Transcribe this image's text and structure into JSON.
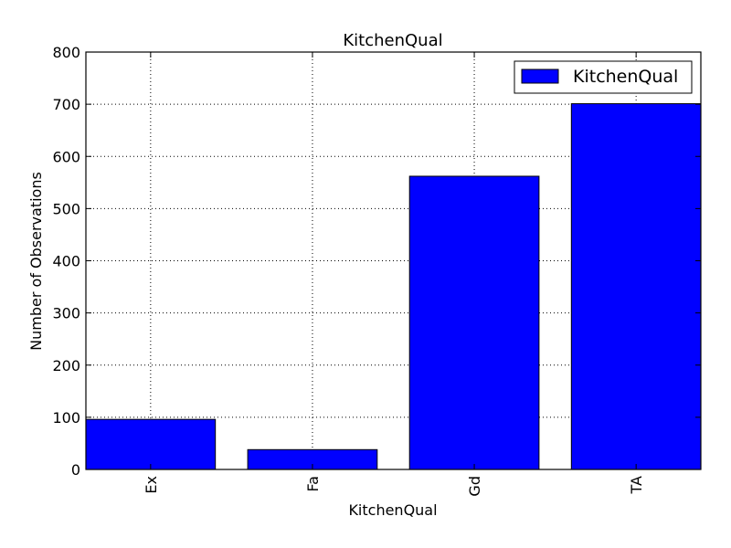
{
  "chart_data": {
    "type": "bar",
    "title": "KitchenQual",
    "xlabel": "KitchenQual",
    "ylabel": "Number of Observations",
    "categories": [
      "Ex",
      "Fa",
      "Gd",
      "TA"
    ],
    "series": [
      {
        "name": "KitchenQual",
        "values": [
          96,
          38,
          562,
          701
        ],
        "color": "#0000ff"
      }
    ],
    "ylim": [
      0,
      800
    ],
    "yticks": [
      0,
      100,
      200,
      300,
      400,
      500,
      600,
      700,
      800
    ],
    "grid": true,
    "legend_position": "top-right"
  }
}
